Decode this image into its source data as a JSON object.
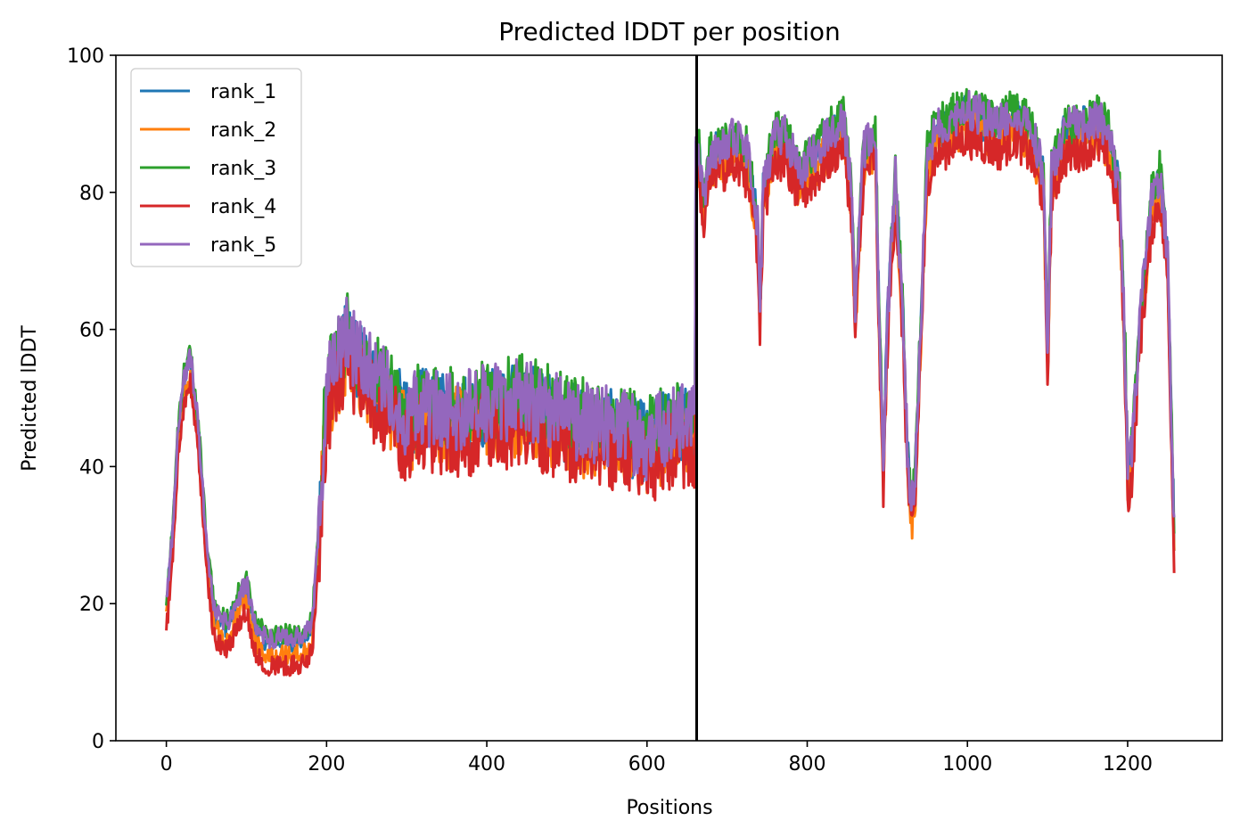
{
  "chart_data": {
    "type": "line",
    "title": "Predicted lDDT per position",
    "xlabel": "Positions",
    "ylabel": "Predicted lDDT",
    "xlim": [
      -63,
      1318
    ],
    "ylim": [
      0,
      100
    ],
    "xticks": [
      0,
      200,
      400,
      600,
      800,
      1000,
      1200
    ],
    "yticks": [
      0,
      20,
      40,
      60,
      80,
      100
    ],
    "grid": false,
    "legend_position": "upper-left",
    "vline_x": 662,
    "vline_color": "#000000",
    "series": [
      {
        "name": "rank_1",
        "color": "#1f77b4",
        "offset": 0.5
      },
      {
        "name": "rank_2",
        "color": "#ff7f0e",
        "offset": -1.5
      },
      {
        "name": "rank_3",
        "color": "#2ca02c",
        "offset": 1.5
      },
      {
        "name": "rank_4",
        "color": "#d62728",
        "offset": -3.0
      },
      {
        "name": "rank_5",
        "color": "#9467bd",
        "offset": 1.0
      }
    ],
    "trend_x": [
      0,
      8,
      15,
      22,
      30,
      40,
      50,
      60,
      75,
      90,
      100,
      110,
      125,
      140,
      155,
      170,
      182,
      190,
      200,
      215,
      225,
      240,
      260,
      280,
      300,
      320,
      350,
      400,
      450,
      500,
      550,
      600,
      640,
      660,
      661,
      664,
      670,
      680,
      695,
      710,
      725,
      738,
      741,
      745,
      760,
      775,
      790,
      810,
      830,
      845,
      855,
      860,
      870,
      885,
      890,
      895,
      900,
      910,
      920,
      925,
      930,
      935,
      940,
      950,
      960,
      980,
      1000,
      1020,
      1040,
      1060,
      1080,
      1095,
      1100,
      1105,
      1120,
      1140,
      1160,
      1175,
      1190,
      1197,
      1200,
      1206,
      1215,
      1230,
      1240,
      1250,
      1258
    ],
    "trend_y": [
      19,
      30,
      45,
      52,
      55,
      45,
      28,
      18,
      16,
      20,
      22,
      16,
      14,
      14,
      14,
      14,
      16,
      30,
      50,
      55,
      58,
      55,
      52,
      50,
      46,
      48,
      47,
      48,
      49,
      46,
      45,
      43,
      46,
      45,
      84,
      86,
      78,
      85,
      86,
      87,
      85,
      75,
      62,
      80,
      88,
      87,
      82,
      85,
      88,
      90,
      80,
      62,
      85,
      88,
      60,
      40,
      60,
      82,
      60,
      42,
      33,
      38,
      55,
      85,
      88,
      90,
      91,
      90,
      89,
      91,
      88,
      82,
      56,
      82,
      88,
      89,
      90,
      88,
      80,
      55,
      38,
      42,
      60,
      78,
      82,
      70,
      30
    ]
  }
}
